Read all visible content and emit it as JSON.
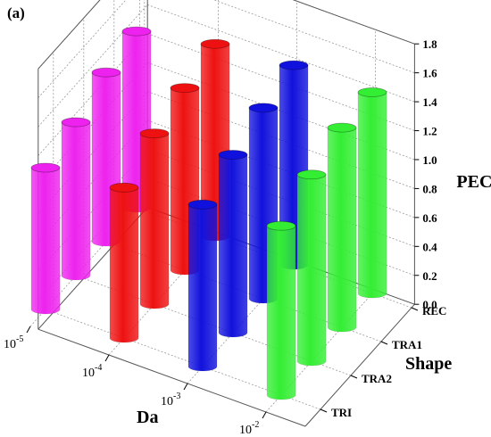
{
  "panel_label": "(a)",
  "chart_data": {
    "type": "bar3d",
    "z_axis": {
      "label": "PEC",
      "range": [
        0.0,
        1.8
      ],
      "ticks": [
        "0.0",
        "0.2",
        "0.4",
        "0.6",
        "0.8",
        "1.0",
        "1.2",
        "1.4",
        "1.6",
        "1.8"
      ]
    },
    "x_axis": {
      "label": "Da",
      "categories": [
        {
          "base": "10",
          "exp": "-2"
        },
        {
          "base": "10",
          "exp": "-3"
        },
        {
          "base": "10",
          "exp": "-4"
        },
        {
          "base": "10",
          "exp": "-5"
        }
      ]
    },
    "y_axis": {
      "label": "Shape",
      "categories": [
        "TRI",
        "TRA2",
        "TRA1",
        "REC"
      ]
    },
    "colors_by_da": [
      "#33ee33",
      "#1111dd",
      "#ee1111",
      "#ee22ee"
    ],
    "values": [
      [
        1.17,
        1.29,
        1.38,
        1.39
      ],
      [
        1.12,
        1.23,
        1.32,
        1.38
      ],
      [
        1.04,
        1.18,
        1.26,
        1.33
      ],
      [
        0.98,
        1.06,
        1.17,
        1.22
      ]
    ]
  }
}
